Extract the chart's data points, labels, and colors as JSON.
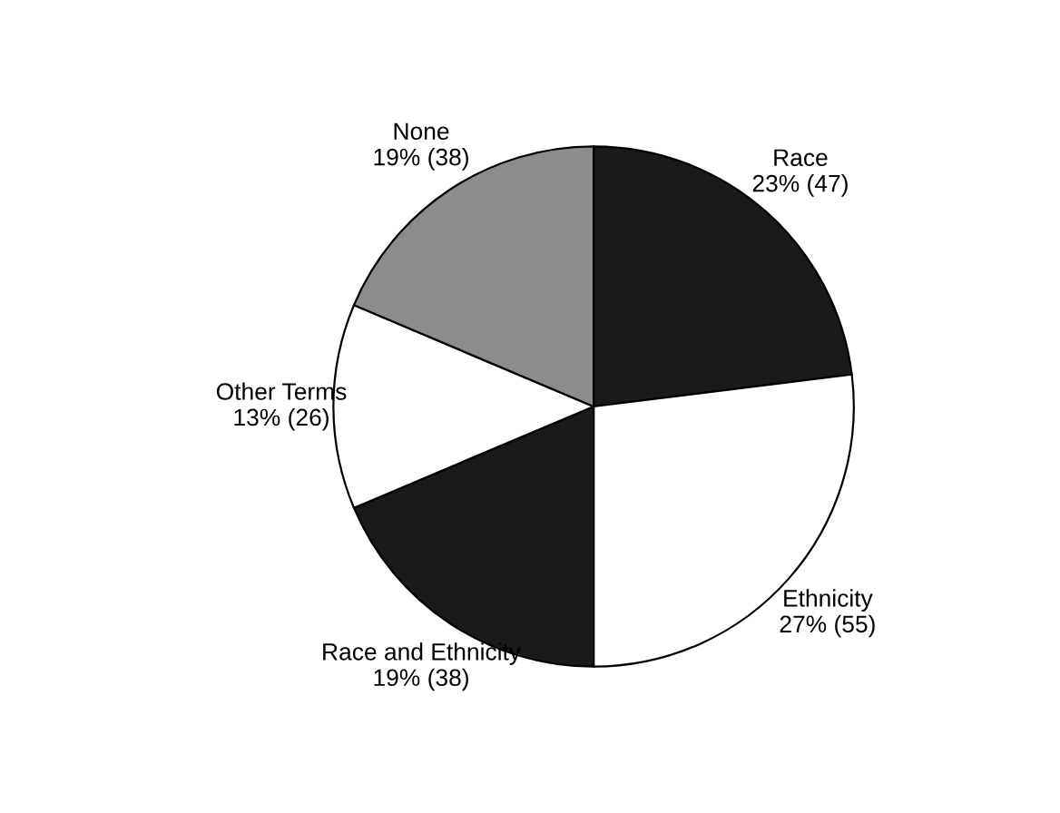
{
  "chart_data": {
    "type": "pie",
    "categories": [
      "Race",
      "Ethnicity",
      "Race and Ethnicity",
      "Other Terms",
      "None"
    ],
    "values": [
      47,
      55,
      38,
      26,
      38
    ],
    "value_labels": [
      "23% (47)",
      "27% (55)",
      "19% (38)",
      "13% (26)",
      "19% (38)"
    ],
    "colors": [
      "#1a1a1a",
      "#ffffff",
      "#1a1a1a",
      "#ffffff",
      "#8c8c8c"
    ]
  }
}
